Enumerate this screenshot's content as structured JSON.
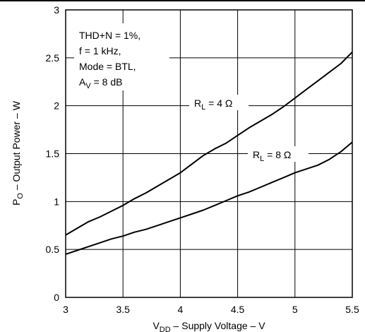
{
  "chart_data": {
    "type": "line",
    "xlabel": {
      "main": "V",
      "sub": "DD",
      "rest": " – Supply Voltage  – V"
    },
    "ylabel": {
      "main": "P",
      "sub": "O",
      "rest": " – Output  Power – W"
    },
    "xlim": [
      3,
      5.5
    ],
    "ylim": [
      0,
      3
    ],
    "xticks": [
      "3",
      "3.5",
      "4",
      "4.5",
      "5",
      "5.5"
    ],
    "yticks": [
      "0",
      "0.5",
      "1",
      "1.5",
      "2",
      "2.5",
      "3"
    ],
    "grid": true,
    "annotation": {
      "lines": [
        "THD+N = 1%,",
        "f = 1 kHz,",
        "Mode = BTL,"
      ],
      "gain": {
        "main": "A",
        "sub": "V",
        "rest": " = 8 dB"
      }
    },
    "series": [
      {
        "name": "R_L = 4 Ω",
        "label": {
          "main": "R",
          "sub": "L",
          "rest": " = 4 Ω"
        },
        "x": [
          3.0,
          3.1,
          3.2,
          3.3,
          3.4,
          3.5,
          3.6,
          3.7,
          3.8,
          3.9,
          4.0,
          4.1,
          4.2,
          4.3,
          4.4,
          4.5,
          4.6,
          4.7,
          4.8,
          4.9,
          5.0,
          5.1,
          5.2,
          5.3,
          5.4,
          5.45,
          5.5
        ],
        "y": [
          0.65,
          0.72,
          0.79,
          0.84,
          0.9,
          0.96,
          1.03,
          1.09,
          1.16,
          1.23,
          1.3,
          1.39,
          1.48,
          1.55,
          1.61,
          1.69,
          1.77,
          1.84,
          1.91,
          1.99,
          2.08,
          2.17,
          2.26,
          2.35,
          2.44,
          2.5,
          2.56
        ]
      },
      {
        "name": "R_L = 8 Ω",
        "label": {
          "main": "R",
          "sub": "L",
          "rest": " = 8 Ω"
        },
        "x": [
          3.0,
          3.1,
          3.2,
          3.3,
          3.4,
          3.5,
          3.6,
          3.7,
          3.8,
          3.9,
          4.0,
          4.1,
          4.2,
          4.3,
          4.4,
          4.5,
          4.6,
          4.7,
          4.8,
          4.9,
          5.0,
          5.1,
          5.2,
          5.3,
          5.4,
          5.45,
          5.5
        ],
        "y": [
          0.45,
          0.49,
          0.53,
          0.57,
          0.61,
          0.64,
          0.68,
          0.71,
          0.75,
          0.79,
          0.83,
          0.87,
          0.91,
          0.96,
          1.01,
          1.06,
          1.1,
          1.15,
          1.2,
          1.25,
          1.3,
          1.34,
          1.38,
          1.44,
          1.52,
          1.57,
          1.62
        ]
      }
    ]
  }
}
